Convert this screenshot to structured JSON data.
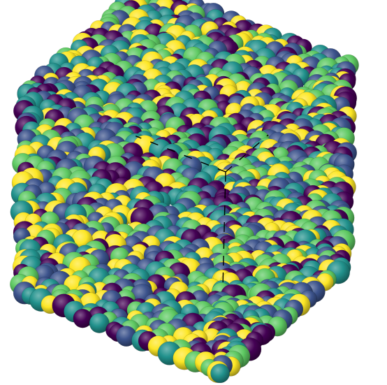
{
  "image": {
    "subject": "packed-spheres-cube",
    "background": "#ffffff",
    "palette": [
      "#440154",
      "#3b528b",
      "#21918c",
      "#5ec962",
      "#fde725"
    ],
    "outline_color": "#000000"
  }
}
